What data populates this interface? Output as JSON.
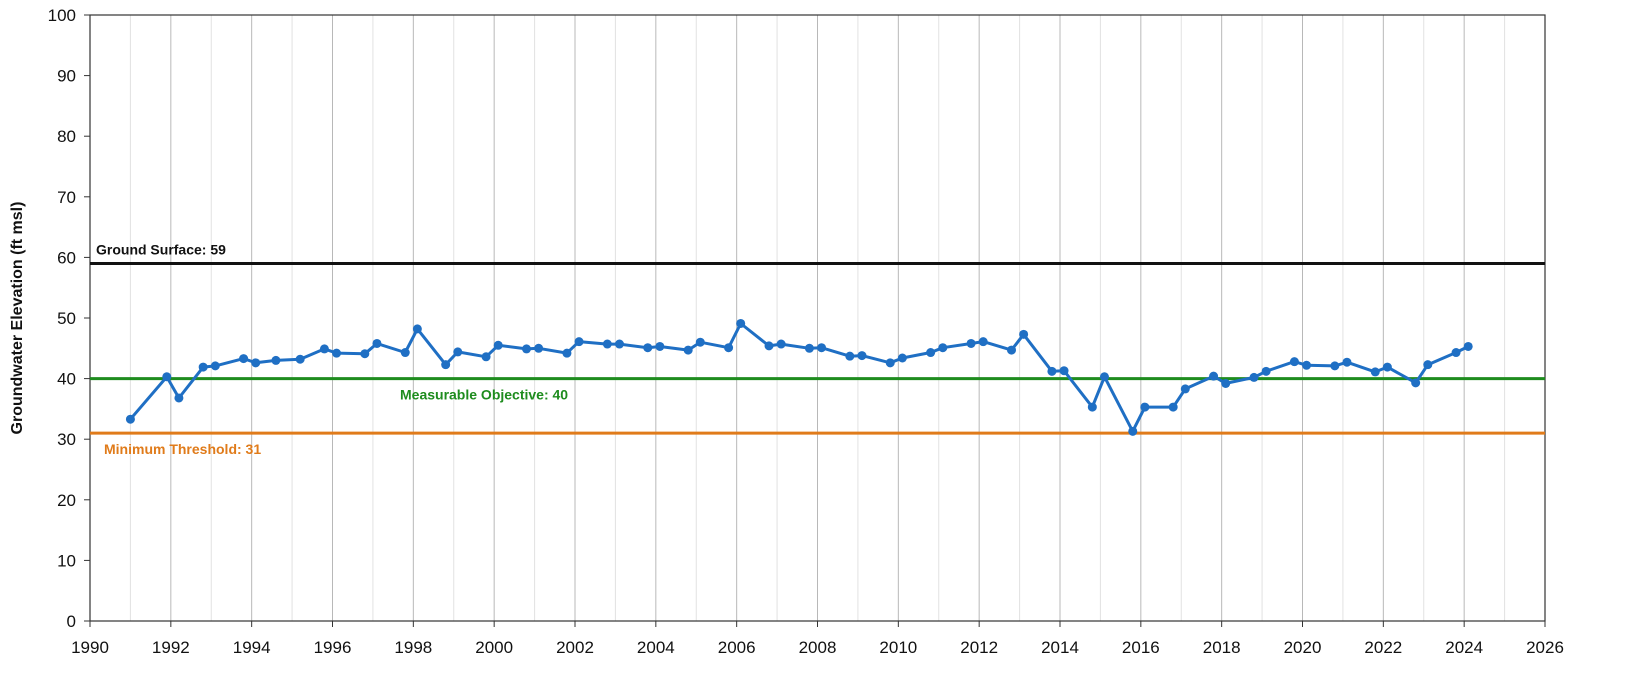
{
  "chart_data": {
    "type": "line",
    "title": "",
    "xlabel": "",
    "ylabel": "Groundwater Elevation (ft msl)",
    "xlim": [
      1990,
      2026
    ],
    "ylim": [
      0,
      100
    ],
    "x_major_ticks": [
      "1990",
      "1992",
      "1994",
      "1996",
      "1998",
      "2000",
      "2002",
      "2004",
      "2006",
      "2008",
      "2010",
      "2012",
      "2014",
      "2016",
      "2018",
      "2020",
      "2022",
      "2024",
      "2026"
    ],
    "y_ticks": [
      "0",
      "10",
      "20",
      "30",
      "40",
      "50",
      "60",
      "70",
      "80",
      "90",
      "100"
    ],
    "grid": true,
    "legend": "none",
    "series": [
      {
        "color": "#1f6fc4",
        "marker": "circle",
        "x": [
          1991.0,
          1991.9,
          1992.2,
          1992.8,
          1993.1,
          1993.8,
          1994.1,
          1994.6,
          1995.2,
          1995.8,
          1996.1,
          1996.8,
          1997.1,
          1997.8,
          1998.1,
          1998.8,
          1999.1,
          1999.8,
          2000.1,
          2000.8,
          2001.1,
          2001.8,
          2002.1,
          2002.8,
          2003.1,
          2003.8,
          2004.1,
          2004.8,
          2005.1,
          2005.8,
          2006.1,
          2006.8,
          2007.1,
          2007.8,
          2008.1,
          2008.8,
          2009.1,
          2009.8,
          2010.1,
          2010.8,
          2011.1,
          2011.8,
          2012.1,
          2012.8,
          2013.1,
          2013.8,
          2014.1,
          2014.8,
          2015.1,
          2015.8,
          2016.1,
          2016.8,
          2017.1,
          2017.8,
          2018.1,
          2018.8,
          2019.1,
          2019.8,
          2020.1,
          2020.8,
          2021.1,
          2021.8,
          2022.1,
          2022.8,
          2023.1,
          2023.8,
          2024.1
        ],
        "y": [
          33.3,
          40.3,
          36.8,
          41.9,
          42.1,
          43.3,
          42.6,
          43.0,
          43.2,
          44.9,
          44.2,
          44.1,
          45.8,
          44.3,
          48.2,
          42.3,
          44.4,
          43.6,
          45.5,
          44.9,
          45.0,
          44.2,
          46.1,
          45.7,
          45.7,
          45.1,
          45.3,
          44.7,
          46.0,
          45.1,
          49.1,
          45.4,
          45.7,
          45.0,
          45.1,
          43.7,
          43.8,
          42.6,
          43.4,
          44.3,
          45.1,
          45.8,
          46.1,
          44.7,
          47.3,
          41.2,
          41.3,
          35.3,
          40.3,
          31.3,
          35.3,
          35.3,
          38.3,
          40.4,
          39.2,
          40.2,
          41.2,
          42.8,
          42.2,
          42.1,
          42.7,
          41.1,
          41.9,
          39.3,
          42.3,
          44.3,
          45.3
        ]
      }
    ],
    "reference_lines": [
      {
        "label": "Ground Surface: 59",
        "value": 59,
        "color": "#111111"
      },
      {
        "label": "Measurable Objective: 40",
        "value": 40,
        "color": "#1e8c1e"
      },
      {
        "label": "Minimum Threshold: 31",
        "value": 31,
        "color": "#e07b1a"
      }
    ]
  }
}
